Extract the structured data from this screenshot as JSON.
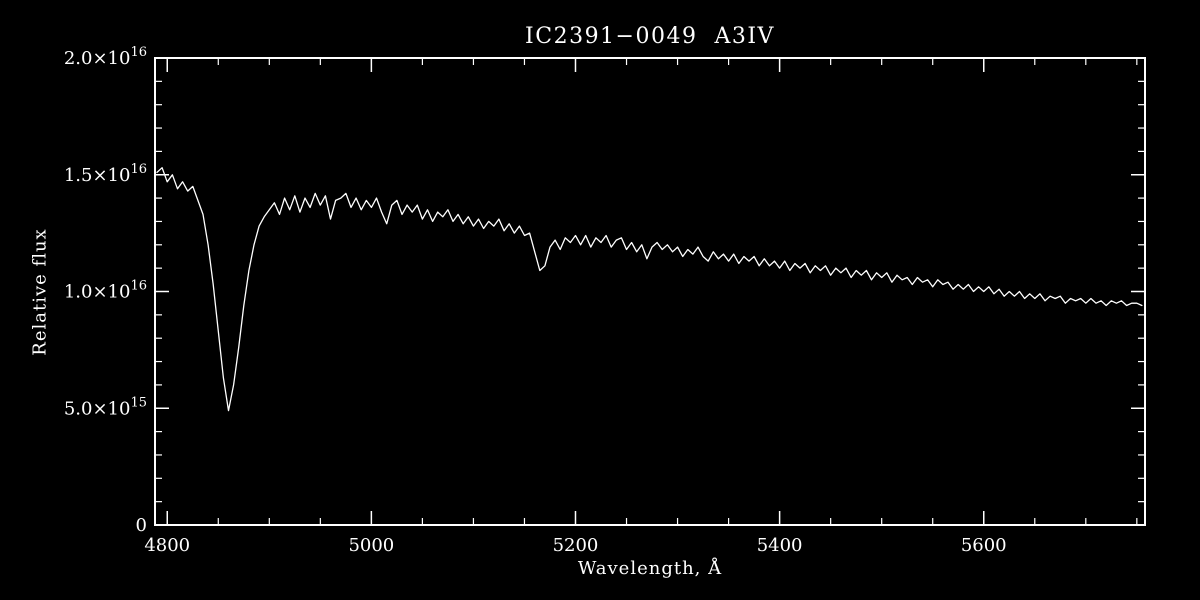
{
  "figure": {
    "background": "#000000",
    "foreground": "#ffffff"
  },
  "chart_data": {
    "type": "line",
    "title": "IC2391−0049  A3IV",
    "xlabel": "Wavelength, Å",
    "ylabel": "Relative flux",
    "line_color": "#ffffff",
    "grid": false,
    "legend": "none",
    "xlim": [
      4788,
      5758
    ],
    "ylim": [
      0,
      20
    ],
    "y_unit": "1e15",
    "xticks": {
      "values": [
        4800,
        5000,
        5200,
        5400,
        5600
      ],
      "labels": [
        "4800",
        "5000",
        "5200",
        "5400",
        "5600"
      ],
      "minor_step": 50
    },
    "yticks": {
      "values": [
        0,
        5,
        10,
        15,
        20
      ],
      "labels": [
        "0",
        "5.0×10^15",
        "1.0×10^16",
        "1.5×10^16",
        "2.0×10^16"
      ],
      "minor_step": 1
    },
    "x_start": 4790,
    "x_step": 5,
    "values": [
      15.1,
      15.3,
      14.7,
      15.0,
      14.4,
      14.7,
      14.3,
      14.5,
      13.9,
      13.3,
      12.0,
      10.3,
      8.3,
      6.3,
      4.9,
      6.0,
      7.6,
      9.4,
      10.9,
      12.0,
      12.8,
      13.2,
      13.5,
      13.8,
      13.3,
      14.0,
      13.5,
      14.1,
      13.4,
      14.0,
      13.6,
      14.2,
      13.7,
      14.1,
      13.1,
      13.9,
      14.0,
      14.2,
      13.6,
      14.0,
      13.5,
      13.9,
      13.6,
      14.0,
      13.4,
      12.9,
      13.7,
      13.9,
      13.3,
      13.7,
      13.4,
      13.7,
      13.1,
      13.5,
      13.0,
      13.4,
      13.2,
      13.5,
      13.0,
      13.3,
      12.9,
      13.2,
      12.8,
      13.1,
      12.7,
      13.0,
      12.8,
      13.1,
      12.6,
      12.9,
      12.5,
      12.8,
      12.4,
      12.5,
      11.7,
      10.9,
      11.1,
      11.9,
      12.2,
      11.8,
      12.3,
      12.1,
      12.4,
      12.0,
      12.4,
      11.9,
      12.3,
      12.1,
      12.4,
      11.9,
      12.2,
      12.3,
      11.8,
      12.1,
      11.7,
      12.0,
      11.4,
      11.9,
      12.1,
      11.8,
      12.0,
      11.7,
      11.9,
      11.5,
      11.8,
      11.6,
      11.9,
      11.5,
      11.3,
      11.7,
      11.4,
      11.6,
      11.3,
      11.6,
      11.2,
      11.5,
      11.3,
      11.5,
      11.1,
      11.4,
      11.1,
      11.3,
      11.0,
      11.3,
      10.9,
      11.2,
      11.0,
      11.2,
      10.8,
      11.1,
      10.9,
      11.1,
      10.7,
      11.0,
      10.8,
      11.0,
      10.6,
      10.9,
      10.7,
      10.9,
      10.5,
      10.8,
      10.6,
      10.8,
      10.4,
      10.7,
      10.5,
      10.6,
      10.3,
      10.6,
      10.4,
      10.5,
      10.2,
      10.5,
      10.3,
      10.4,
      10.1,
      10.3,
      10.1,
      10.3,
      10.0,
      10.2,
      10.0,
      10.2,
      9.9,
      10.1,
      9.8,
      10.0,
      9.8,
      10.0,
      9.7,
      9.9,
      9.7,
      9.9,
      9.6,
      9.8,
      9.7,
      9.8,
      9.5,
      9.7,
      9.6,
      9.7,
      9.5,
      9.7,
      9.5,
      9.6,
      9.4,
      9.6,
      9.5,
      9.6,
      9.4,
      9.5,
      9.5,
      9.4
    ]
  }
}
